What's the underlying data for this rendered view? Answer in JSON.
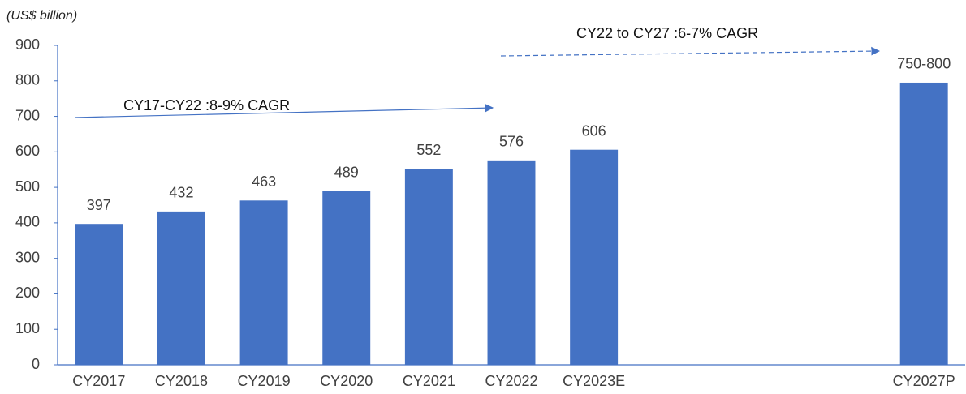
{
  "chart_data": {
    "type": "bar",
    "y_label": "(US$ billion)",
    "categories": [
      "CY2017",
      "CY2018",
      "CY2019",
      "CY2020",
      "CY2021",
      "CY2022",
      "CY2023E",
      null,
      null,
      null,
      "CY2027P"
    ],
    "values": [
      397,
      432,
      463,
      489,
      552,
      576,
      606,
      null,
      null,
      null,
      795
    ],
    "value_labels": [
      "397",
      "432",
      "463",
      "489",
      "552",
      "576",
      "606",
      null,
      null,
      null,
      "750-800"
    ],
    "color": "#4472c4",
    "ylim": [
      0,
      900
    ],
    "yticks": [
      0,
      100,
      200,
      300,
      400,
      500,
      600,
      700,
      800,
      900
    ],
    "grid": false,
    "annotations": [
      "CY17-CY22 :8-9% CAGR",
      "CY22 to CY27 :6-7% CAGR"
    ]
  }
}
